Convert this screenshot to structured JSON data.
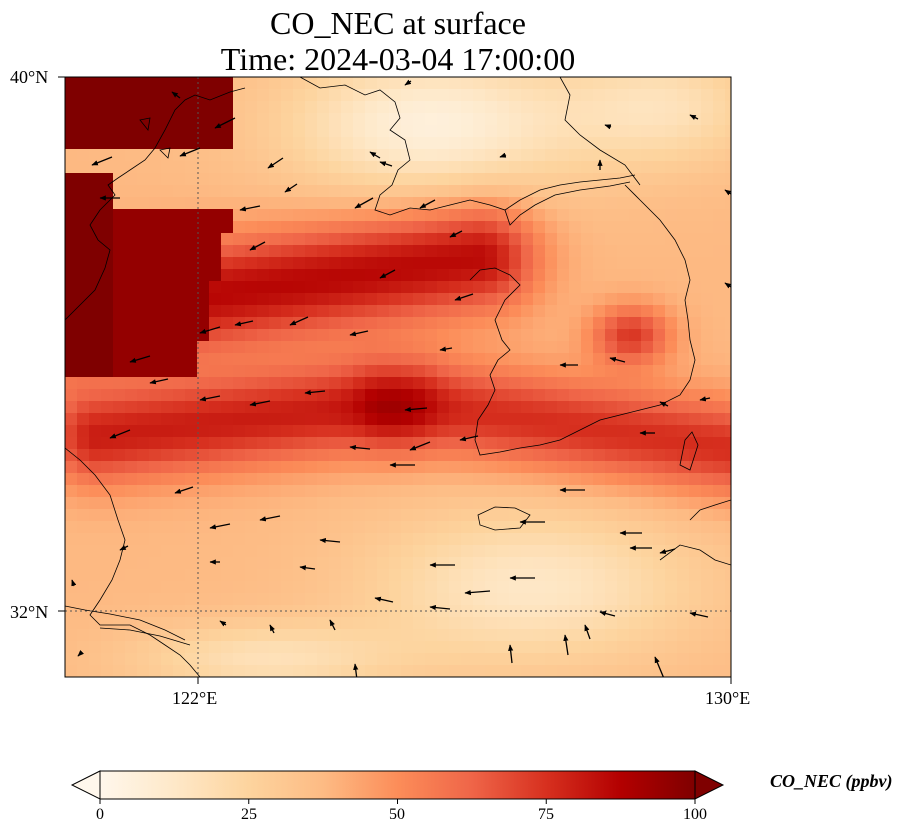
{
  "title_line1": "CO_NEC at surface",
  "title_line2": "Time: 2024-03-04 17:00:00",
  "lat_labels": {
    "north": "40°N",
    "south": "32°N"
  },
  "lon_labels": {
    "west": "122°E",
    "east": "130°E"
  },
  "extent": {
    "lon_min": 120,
    "lon_max": 130,
    "lat_min": 31,
    "lat_max": 40
  },
  "gridlines": {
    "lon": 122,
    "lat": 32
  },
  "colorbar": {
    "label": "CO_NEC (ppbv)",
    "ticks": [
      "0",
      "25",
      "50",
      "75",
      "100"
    ],
    "min": 0,
    "max": 100,
    "extend": "both",
    "colormap": [
      "#fff7ec",
      "#fee8c8",
      "#fdd49e",
      "#fdbb84",
      "#fc8d59",
      "#ef6548",
      "#d7301f",
      "#b30000",
      "#7f0000"
    ]
  },
  "field_description": {
    "high_core_nw": 100,
    "plume_core": 85,
    "background_ocean": 40,
    "clean_north": 8
  }
}
